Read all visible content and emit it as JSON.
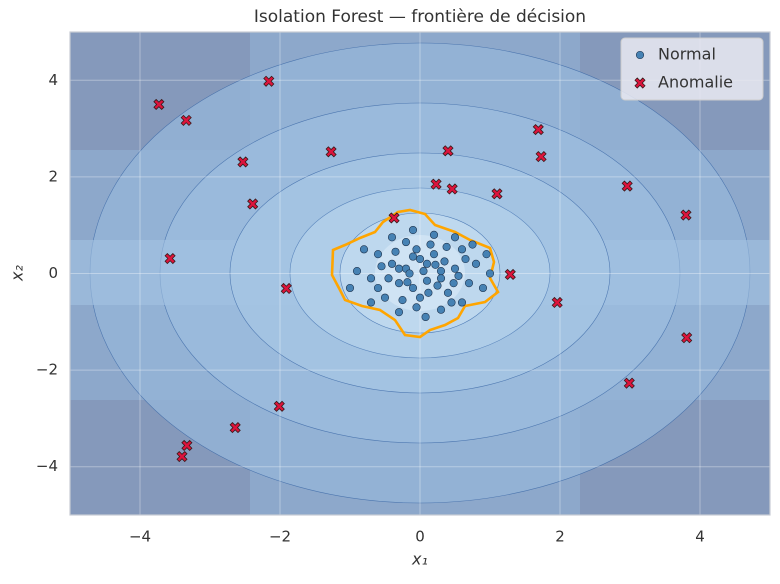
{
  "chart_data": {
    "type": "scatter",
    "title": "Isolation Forest — frontière de décision",
    "xlabel": "x₁",
    "ylabel": "x₂",
    "xlim": [
      -5,
      5
    ],
    "ylim": [
      -5,
      5
    ],
    "xticks": [
      {
        "value": -4,
        "label": "−4"
      },
      {
        "value": -2,
        "label": "−2"
      },
      0,
      2,
      4
    ],
    "yticks": [
      {
        "value": -4,
        "label": "−4"
      },
      {
        "value": -2,
        "label": "−2"
      },
      0,
      2,
      4
    ],
    "grid": true,
    "legend": "upper right",
    "series": [
      {
        "name": "Normal",
        "color": "#4682b4",
        "marker": "circle",
        "x": [
          0.1,
          -0.2,
          0.3,
          -0.1,
          0.2,
          -0.4,
          0.5,
          0.0,
          -0.3,
          0.4,
          -0.6,
          0.7,
          0.15,
          -0.5,
          0.6,
          -0.2,
          0.05,
          -0.1,
          0.25,
          0.35,
          -0.35,
          -0.7,
          0.8,
          -0.05,
          0.45,
          -0.8,
          0.9,
          0.2,
          -0.25,
          0.55,
          -0.45,
          0.1,
          -0.15,
          0.3,
          0.0,
          -0.3,
          0.12,
          -0.6,
          0.65,
          -0.05,
          0.38,
          -0.55,
          0.48,
          -0.18,
          0.22,
          -0.9,
          1.0,
          0.08,
          -0.4,
          0.75,
          -0.7,
          0.3,
          -0.1,
          0.6,
          -1.0,
          0.95,
          -0.3,
          0.5
        ],
        "y": [
          0.2,
          0.1,
          -0.1,
          -0.3,
          0.4,
          0.2,
          0.1,
          -0.5,
          -0.2,
          -0.4,
          0.4,
          -0.2,
          0.6,
          -0.5,
          0.5,
          0.65,
          0.05,
          0.35,
          -0.25,
          0.25,
          0.45,
          -0.1,
          0.2,
          -0.7,
          -0.6,
          0.5,
          -0.3,
          0.8,
          -0.55,
          -0.05,
          -0.1,
          -0.15,
          0.0,
          0.05,
          0.3,
          0.1,
          -0.4,
          -0.3,
          0.3,
          0.5,
          0.55,
          0.15,
          -0.2,
          -0.18,
          0.18,
          0.05,
          0.0,
          -0.9,
          0.75,
          0.6,
          -0.6,
          -0.75,
          0.9,
          -0.6,
          -0.3,
          0.4,
          -0.8,
          0.75
        ]
      },
      {
        "name": "Anomalie",
        "color": "#dc143c",
        "marker": "x",
        "x": [
          -3.73,
          -3.34,
          -2.16,
          -2.53,
          -2.39,
          -1.27,
          0.4,
          0.23,
          0.46,
          1.1,
          1.69,
          1.73,
          2.96,
          3.8,
          -0.37,
          -3.57,
          -1.91,
          1.29,
          1.96,
          3.81,
          2.99,
          -2.01,
          -2.64,
          -3.33,
          -3.4
        ],
        "y": [
          3.5,
          3.17,
          3.98,
          2.31,
          1.44,
          2.52,
          2.54,
          1.85,
          1.75,
          1.65,
          2.98,
          2.42,
          1.81,
          1.21,
          1.15,
          0.31,
          -0.31,
          -0.02,
          -0.6,
          -1.33,
          -2.27,
          -2.75,
          -3.19,
          -3.56,
          -3.79
        ]
      }
    ]
  }
}
